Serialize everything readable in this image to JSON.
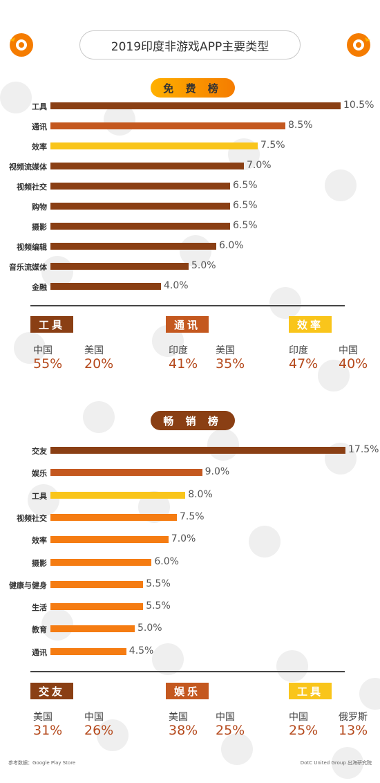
{
  "title": "2019印度非游戏APP主要类型",
  "free": {
    "pill": "免 费 榜",
    "chart_data": {
      "type": "bar",
      "orientation": "horizontal",
      "categories": [
        "工具",
        "通讯",
        "效率",
        "视频流媒体",
        "视频社交",
        "购物",
        "摄影",
        "视频编辑",
        "音乐流媒体",
        "金融"
      ],
      "values": [
        10.5,
        8.5,
        7.5,
        7.0,
        6.5,
        6.5,
        6.5,
        6.0,
        5.0,
        4.0
      ],
      "value_labels": [
        "10.5%",
        "8.5%",
        "7.5%",
        "7.0%",
        "6.5%",
        "6.5%",
        "6.5%",
        "6.0%",
        "5.0%",
        "4.0%"
      ],
      "colors": [
        "#8a3f14",
        "#c4581f",
        "#f9c51b",
        "#8a3f14",
        "#8a3f14",
        "#8a3f14",
        "#8a3f14",
        "#8a3f14",
        "#8a3f14",
        "#8a3f14"
      ],
      "xlim": [
        0,
        10.5
      ]
    },
    "stats": [
      {
        "tag": "工具",
        "tag_color": "#8a3f14",
        "items": [
          {
            "name": "中国",
            "value": "55%"
          },
          {
            "name": "美国",
            "value": "20%"
          }
        ]
      },
      {
        "tag": "通讯",
        "tag_color": "#c4581f",
        "items": [
          {
            "name": "印度",
            "value": "41%"
          },
          {
            "name": "美国",
            "value": "35%"
          }
        ]
      },
      {
        "tag": "效率",
        "tag_color": "#f9c51b",
        "items": [
          {
            "name": "印度",
            "value": "47%"
          },
          {
            "name": "中国",
            "value": "40%"
          }
        ]
      }
    ]
  },
  "paid": {
    "pill": "畅 销 榜",
    "chart_data": {
      "type": "bar",
      "orientation": "horizontal",
      "categories": [
        "交友",
        "娱乐",
        "工具",
        "视频社交",
        "效率",
        "摄影",
        "健康与健身",
        "生活",
        "教育",
        "通讯"
      ],
      "values": [
        17.5,
        9.0,
        8.0,
        7.5,
        7.0,
        6.0,
        5.5,
        5.5,
        5.0,
        4.5
      ],
      "value_labels": [
        "17.5%",
        "9.0%",
        "8.0%",
        "7.5%",
        "7.0%",
        "6.0%",
        "5.5%",
        "5.5%",
        "5.0%",
        "4.5%"
      ],
      "colors": [
        "#8a3f14",
        "#c4581f",
        "#f9c51b",
        "#f57c12",
        "#f57c12",
        "#f57c12",
        "#f57c12",
        "#f57c12",
        "#f57c12",
        "#f57c12"
      ],
      "xlim": [
        0,
        17.5
      ]
    },
    "stats": [
      {
        "tag": "交友",
        "tag_color": "#8a3f14",
        "items": [
          {
            "name": "美国",
            "value": "31%"
          },
          {
            "name": "中国",
            "value": "26%"
          }
        ]
      },
      {
        "tag": "娱乐",
        "tag_color": "#c4581f",
        "items": [
          {
            "name": "美国",
            "value": "38%"
          },
          {
            "name": "中国",
            "value": "25%"
          }
        ]
      },
      {
        "tag": "工具",
        "tag_color": "#f9c51b",
        "items": [
          {
            "name": "中国",
            "value": "25%"
          },
          {
            "name": "俄罗斯",
            "value": "13%"
          }
        ]
      }
    ]
  },
  "footer": {
    "source": "参考数据：Google Play Store",
    "credit": "DotC United Group  出海研究院"
  },
  "colors": {
    "logo": "#f57c00",
    "stat_value": "#b54a1d"
  }
}
